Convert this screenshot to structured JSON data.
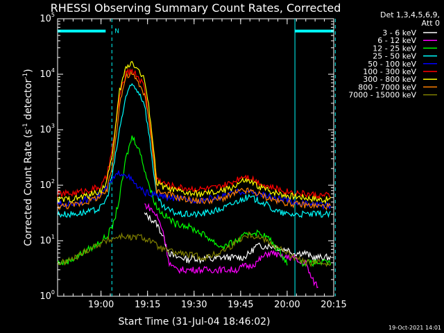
{
  "chart_data": {
    "type": "line",
    "title": "RHESSI Observing Summary Count Rates, Corrected",
    "xlabel": "Start Time (31-Jul-04 18:46:02)",
    "ylabel_pre": "Corrected Count Rate (s",
    "ylabel_sup1": "-1",
    "ylabel_mid": " detector",
    "ylabel_sup2": "-1",
    "ylabel_post": ")",
    "x_range_min": [
      -14,
      75
    ],
    "y_log_range": [
      0,
      5
    ],
    "x_ticks": [
      {
        "min": 0,
        "label": "19:00"
      },
      {
        "min": 15,
        "label": "19:15"
      },
      {
        "min": 30,
        "label": "19:30"
      },
      {
        "min": 45,
        "label": "19:45"
      },
      {
        "min": 60,
        "label": "20:00"
      },
      {
        "min": 75,
        "label": "20:15"
      }
    ],
    "y_ticks": [
      {
        "exp": 0,
        "base": "10",
        "sup": "0"
      },
      {
        "exp": 1,
        "base": "10",
        "sup": "1"
      },
      {
        "exp": 2,
        "base": "10",
        "sup": "2"
      },
      {
        "exp": 3,
        "base": "10",
        "sup": "3"
      },
      {
        "exp": 4,
        "base": "10",
        "sup": "4"
      },
      {
        "exp": 5,
        "base": "10",
        "sup": "5"
      }
    ],
    "legend_header": [
      "Det 1,3,4,5,6,9,",
      "Att 0"
    ],
    "legend_position": "right",
    "series": [
      {
        "name": "3 - 6 keV",
        "color": "#ffffff",
        "values": [
          null,
          null,
          null,
          null,
          null,
          null,
          null,
          null,
          null,
          null,
          null,
          null,
          null,
          null,
          30,
          25,
          20,
          12,
          6,
          5,
          5,
          4.5,
          5,
          4.5,
          5,
          4.5,
          5,
          5,
          5,
          5,
          5,
          6,
          8,
          8,
          8,
          8,
          7,
          7,
          6,
          6,
          6,
          5,
          5,
          5,
          5
        ]
      },
      {
        "name": "6 - 12 keV",
        "color": "#ff00ff",
        "values": [
          null,
          null,
          null,
          null,
          null,
          null,
          null,
          null,
          null,
          null,
          null,
          null,
          null,
          null,
          45,
          38,
          28,
          15,
          4,
          3,
          3,
          3,
          3,
          3,
          3,
          3,
          3,
          3,
          3,
          3,
          3.5,
          3.5,
          4,
          5,
          6,
          6,
          5,
          5,
          5,
          4,
          4,
          2,
          1.5,
          null,
          null
        ]
      },
      {
        "name": "12 - 25 keV",
        "color": "#00ff00",
        "values": [
          4,
          4,
          4.5,
          5,
          6,
          7,
          8,
          10,
          12,
          20,
          60,
          300,
          750,
          500,
          200,
          80,
          40,
          30,
          25,
          20,
          20,
          18,
          16,
          14,
          12,
          10,
          8,
          8,
          9,
          10,
          12,
          14,
          14,
          13,
          11,
          8,
          6,
          4,
          null,
          4,
          4,
          4,
          4,
          4,
          4
        ]
      },
      {
        "name": "25 - 50 keV",
        "color": "#00ffff",
        "values": [
          30,
          30,
          30,
          31,
          32,
          33,
          35,
          40,
          60,
          200,
          1000,
          4000,
          6500,
          5000,
          3000,
          500,
          60,
          40,
          35,
          32,
          30,
          30,
          30,
          30,
          32,
          34,
          36,
          40,
          45,
          52,
          58,
          60,
          55,
          50,
          42,
          35,
          32,
          30,
          30,
          30,
          30,
          30,
          30,
          30,
          30
        ]
      },
      {
        "name": "50 - 100 keV",
        "color": "#0000ff",
        "values": [
          45,
          45,
          46,
          48,
          52,
          56,
          62,
          70,
          90,
          130,
          170,
          160,
          120,
          90,
          75,
          70,
          65,
          63,
          60,
          58,
          56,
          55,
          55,
          55,
          56,
          58,
          60,
          65,
          70,
          75,
          78,
          75,
          72,
          68,
          62,
          58,
          55,
          52,
          50,
          48,
          46,
          45,
          44,
          43,
          42
        ]
      },
      {
        "name": "100 - 300 keV",
        "color": "#ff0000",
        "values": [
          70,
          70,
          71,
          73,
          78,
          82,
          88,
          95,
          150,
          600,
          4000,
          10000,
          12000,
          9000,
          6000,
          1000,
          130,
          110,
          100,
          95,
          90,
          88,
          86,
          85,
          86,
          88,
          92,
          100,
          110,
          130,
          150,
          140,
          120,
          105,
          95,
          88,
          82,
          78,
          75,
          72,
          70,
          68,
          66,
          65,
          65
        ]
      },
      {
        "name": "300 - 800 keV",
        "color": "#ffff00",
        "values": [
          55,
          55,
          56,
          58,
          62,
          66,
          72,
          80,
          120,
          500,
          5000,
          13000,
          17000,
          12000,
          8000,
          1500,
          110,
          95,
          85,
          80,
          75,
          72,
          70,
          70,
          71,
          73,
          76,
          82,
          90,
          105,
          120,
          115,
          100,
          90,
          80,
          75,
          70,
          66,
          64,
          62,
          60,
          58,
          56,
          55,
          55
        ]
      },
      {
        "name": "800 - 7000 keV",
        "color": "#ff8000",
        "values": [
          42,
          42,
          43,
          45,
          48,
          52,
          58,
          62,
          80,
          300,
          3000,
          9000,
          10000,
          7000,
          4500,
          900,
          80,
          72,
          68,
          62,
          58,
          55,
          53,
          52,
          52,
          54,
          56,
          60,
          66,
          74,
          80,
          78,
          72,
          65,
          58,
          54,
          50,
          48,
          46,
          45,
          44,
          43,
          42,
          42,
          42
        ]
      },
      {
        "name": "7000 - 15000 keV",
        "color": "#808000",
        "values": [
          4,
          4,
          4.5,
          5,
          6,
          7,
          8,
          9,
          10,
          11,
          12,
          12,
          11,
          12,
          11,
          10,
          8,
          7,
          6.5,
          6,
          6,
          5.5,
          5.5,
          5,
          5,
          5.5,
          6,
          7,
          8,
          10,
          12,
          13,
          12,
          11,
          10,
          8,
          7,
          6,
          5,
          4.5,
          4,
          4,
          4,
          4,
          4
        ]
      }
    ],
    "series_x_start": -14,
    "series_x_step": 2,
    "attenuator_marks": [
      {
        "from_min": -14,
        "to_min": 1.5,
        "value": 60000
      },
      {
        "from_min": 62.5,
        "to_min": 75,
        "value": 60000
      }
    ],
    "n_label": "N",
    "vertical_lines": [
      {
        "min": 3.5,
        "style": "dashed"
      },
      {
        "min": 62.5,
        "style": "solid"
      },
      {
        "min": 75.5,
        "style": "dashed"
      }
    ],
    "footer_date": "19-Oct-2021 14:01"
  }
}
